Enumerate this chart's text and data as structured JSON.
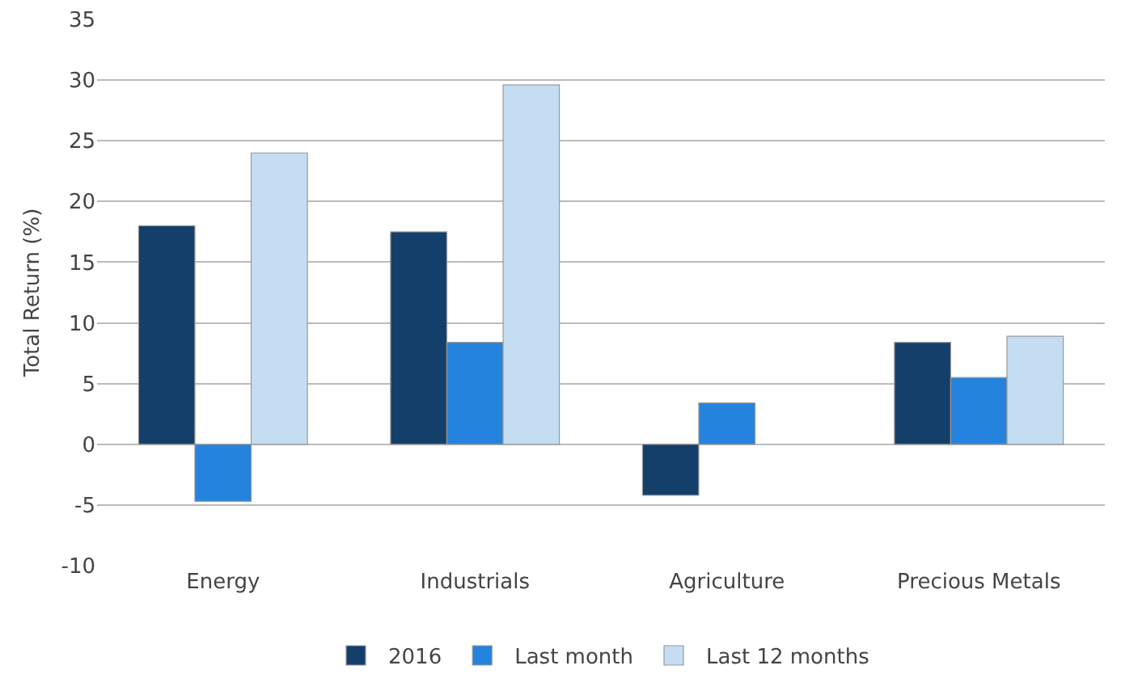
{
  "chart_data": {
    "type": "bar",
    "ylabel": "Total Return (%)",
    "categories": [
      "Energy",
      "Industrials",
      "Agriculture",
      "Precious Metals"
    ],
    "series": [
      {
        "name": "2016",
        "color": "#143f6b",
        "values": [
          18,
          17.5,
          -4.2,
          8.4
        ]
      },
      {
        "name": "Last month",
        "color": "#2483dc",
        "values": [
          -4.7,
          8.4,
          3.4,
          5.5
        ]
      },
      {
        "name": "Last 12 months",
        "color": "#c4ddf3",
        "values": [
          24,
          29.6,
          null,
          8.9
        ]
      }
    ],
    "ylim": [
      -10,
      35
    ],
    "yticks": [
      -10,
      -5,
      0,
      5,
      10,
      15,
      20,
      25,
      30,
      35
    ],
    "grid": "y",
    "legend": "bottom"
  }
}
